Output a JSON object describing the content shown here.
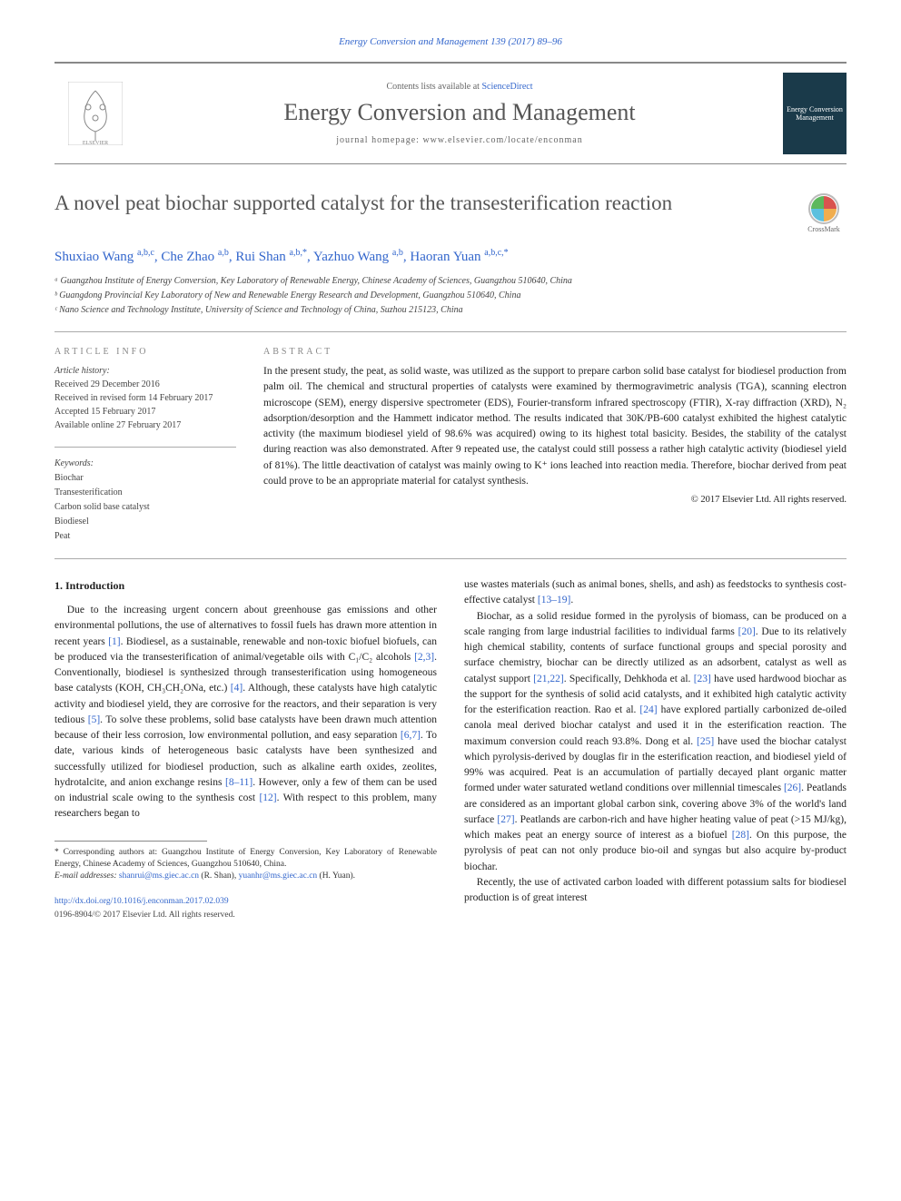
{
  "journal_ref": "Energy Conversion and Management 139 (2017) 89–96",
  "header": {
    "contents_prefix": "Contents lists available at ",
    "contents_link": "ScienceDirect",
    "journal_name": "Energy Conversion and Management",
    "homepage": "journal homepage: www.elsevier.com/locate/enconman",
    "publisher": "ELSEVIER",
    "cover_text": "Energy Conversion Management"
  },
  "title": "A novel peat biochar supported catalyst for the transesterification reaction",
  "crossmark": "CrossMark",
  "authors_html": "Shuxiao Wang <sup>a,b,c</sup>, Che Zhao <sup>a,b</sup>, Rui Shan <sup>a,b,*</sup>, Yazhuo Wang <sup>a,b</sup>, Haoran Yuan <sup>a,b,c,*</sup>",
  "affiliations": [
    "ᵃ Guangzhou Institute of Energy Conversion, Key Laboratory of Renewable Energy, Chinese Academy of Sciences, Guangzhou 510640, China",
    "ᵇ Guangdong Provincial Key Laboratory of New and Renewable Energy Research and Development, Guangzhou 510640, China",
    "ᶜ Nano Science and Technology Institute, University of Science and Technology of China, Suzhou 215123, China"
  ],
  "article_info": {
    "head": "ARTICLE INFO",
    "history_label": "Article history:",
    "history": [
      "Received 29 December 2016",
      "Received in revised form 14 February 2017",
      "Accepted 15 February 2017",
      "Available online 27 February 2017"
    ],
    "keywords_label": "Keywords:",
    "keywords": [
      "Biochar",
      "Transesterification",
      "Carbon solid base catalyst",
      "Biodiesel",
      "Peat"
    ]
  },
  "abstract": {
    "head": "ABSTRACT",
    "text": "In the present study, the peat, as solid waste, was utilized as the support to prepare carbon solid base catalyst for biodiesel production from palm oil. The chemical and structural properties of catalysts were examined by thermogravimetric analysis (TGA), scanning electron microscope (SEM), energy dispersive spectrometer (EDS), Fourier-transform infrared spectroscopy (FTIR), X-ray diffraction (XRD), N₂ adsorption/desorption and the Hammett indicator method. The results indicated that 30K/PB-600 catalyst exhibited the highest catalytic activity (the maximum biodiesel yield of 98.6% was acquired) owing to its highest total basicity. Besides, the stability of the catalyst during reaction was also demonstrated. After 9 repeated use, the catalyst could still possess a rather high catalytic activity (biodiesel yield of 81%). The little deactivation of catalyst was mainly owing to K⁺ ions leached into reaction media. Therefore, biochar derived from peat could prove to be an appropriate material for catalyst synthesis.",
    "copyright": "© 2017 Elsevier Ltd. All rights reserved."
  },
  "body": {
    "section_head": "1. Introduction",
    "col1_p1": "Due to the increasing urgent concern about greenhouse gas emissions and other environmental pollutions, the use of alternatives to fossil fuels has drawn more attention in recent years [1]. Biodiesel, as a sustainable, renewable and non-toxic biofuel biofuels, can be produced via the transesterification of animal/vegetable oils with C₁/C₂ alcohols [2,3]. Conventionally, biodiesel is synthesized through transesterification using homogeneous base catalysts (KOH, CH₃CH₂ONa, etc.) [4]. Although, these catalysts have high catalytic activity and biodiesel yield, they are corrosive for the reactors, and their separation is very tedious [5]. To solve these problems, solid base catalysts have been drawn much attention because of their less corrosion, low environmental pollution, and easy separation [6,7]. To date, various kinds of heterogeneous basic catalysts have been synthesized and successfully utilized for biodiesel production, such as alkaline earth oxides, zeolites, hydrotalcite, and anion exchange resins [8–11]. However, only a few of them can be used on industrial scale owing to the synthesis cost [12]. With respect to this problem, many researchers began to",
    "col2_p1": "use wastes materials (such as animal bones, shells, and ash) as feedstocks to synthesis cost-effective catalyst [13–19].",
    "col2_p2": "Biochar, as a solid residue formed in the pyrolysis of biomass, can be produced on a scale ranging from large industrial facilities to individual farms [20]. Due to its relatively high chemical stability, contents of surface functional groups and special porosity and surface chemistry, biochar can be directly utilized as an adsorbent, catalyst as well as catalyst support [21,22]. Specifically, Dehkhoda et al. [23] have used hardwood biochar as the support for the synthesis of solid acid catalysts, and it exhibited high catalytic activity for the esterification reaction. Rao et al. [24] have explored partially carbonized de-oiled canola meal derived biochar catalyst and used it in the esterification reaction. The maximum conversion could reach 93.8%. Dong et al. [25] have used the biochar catalyst which pyrolysis-derived by douglas fir in the esterification reaction, and biodiesel yield of 99% was acquired. Peat is an accumulation of partially decayed plant organic matter formed under water saturated wetland conditions over millennial timescales [26]. Peatlands are considered as an important global carbon sink, covering above 3% of the world's land surface [27]. Peatlands are carbon-rich and have higher heating value of peat (>15 MJ/kg), which makes peat an energy source of interest as a biofuel [28]. On this purpose, the pyrolysis of peat can not only produce bio-oil and syngas but also acquire by-product biochar.",
    "col2_p3": "Recently, the use of activated carbon loaded with different potassium salts for biodiesel production is of great interest"
  },
  "footnotes": {
    "corresponding": "* Corresponding authors at: Guangzhou Institute of Energy Conversion, Key Laboratory of Renewable Energy, Chinese Academy of Sciences, Guangzhou 510640, China.",
    "emails_label": "E-mail addresses: ",
    "email1": "shanrui@ms.giec.ac.cn",
    "email1_who": " (R. Shan), ",
    "email2": "yuanhr@ms.giec.ac.cn",
    "email2_who": " (H. Yuan)."
  },
  "doi": "http://dx.doi.org/10.1016/j.enconman.2017.02.039",
  "issn": "0196-8904/© 2017 Elsevier Ltd. All rights reserved.",
  "colors": {
    "link": "#3366cc",
    "text": "#222222",
    "muted": "#888888"
  }
}
